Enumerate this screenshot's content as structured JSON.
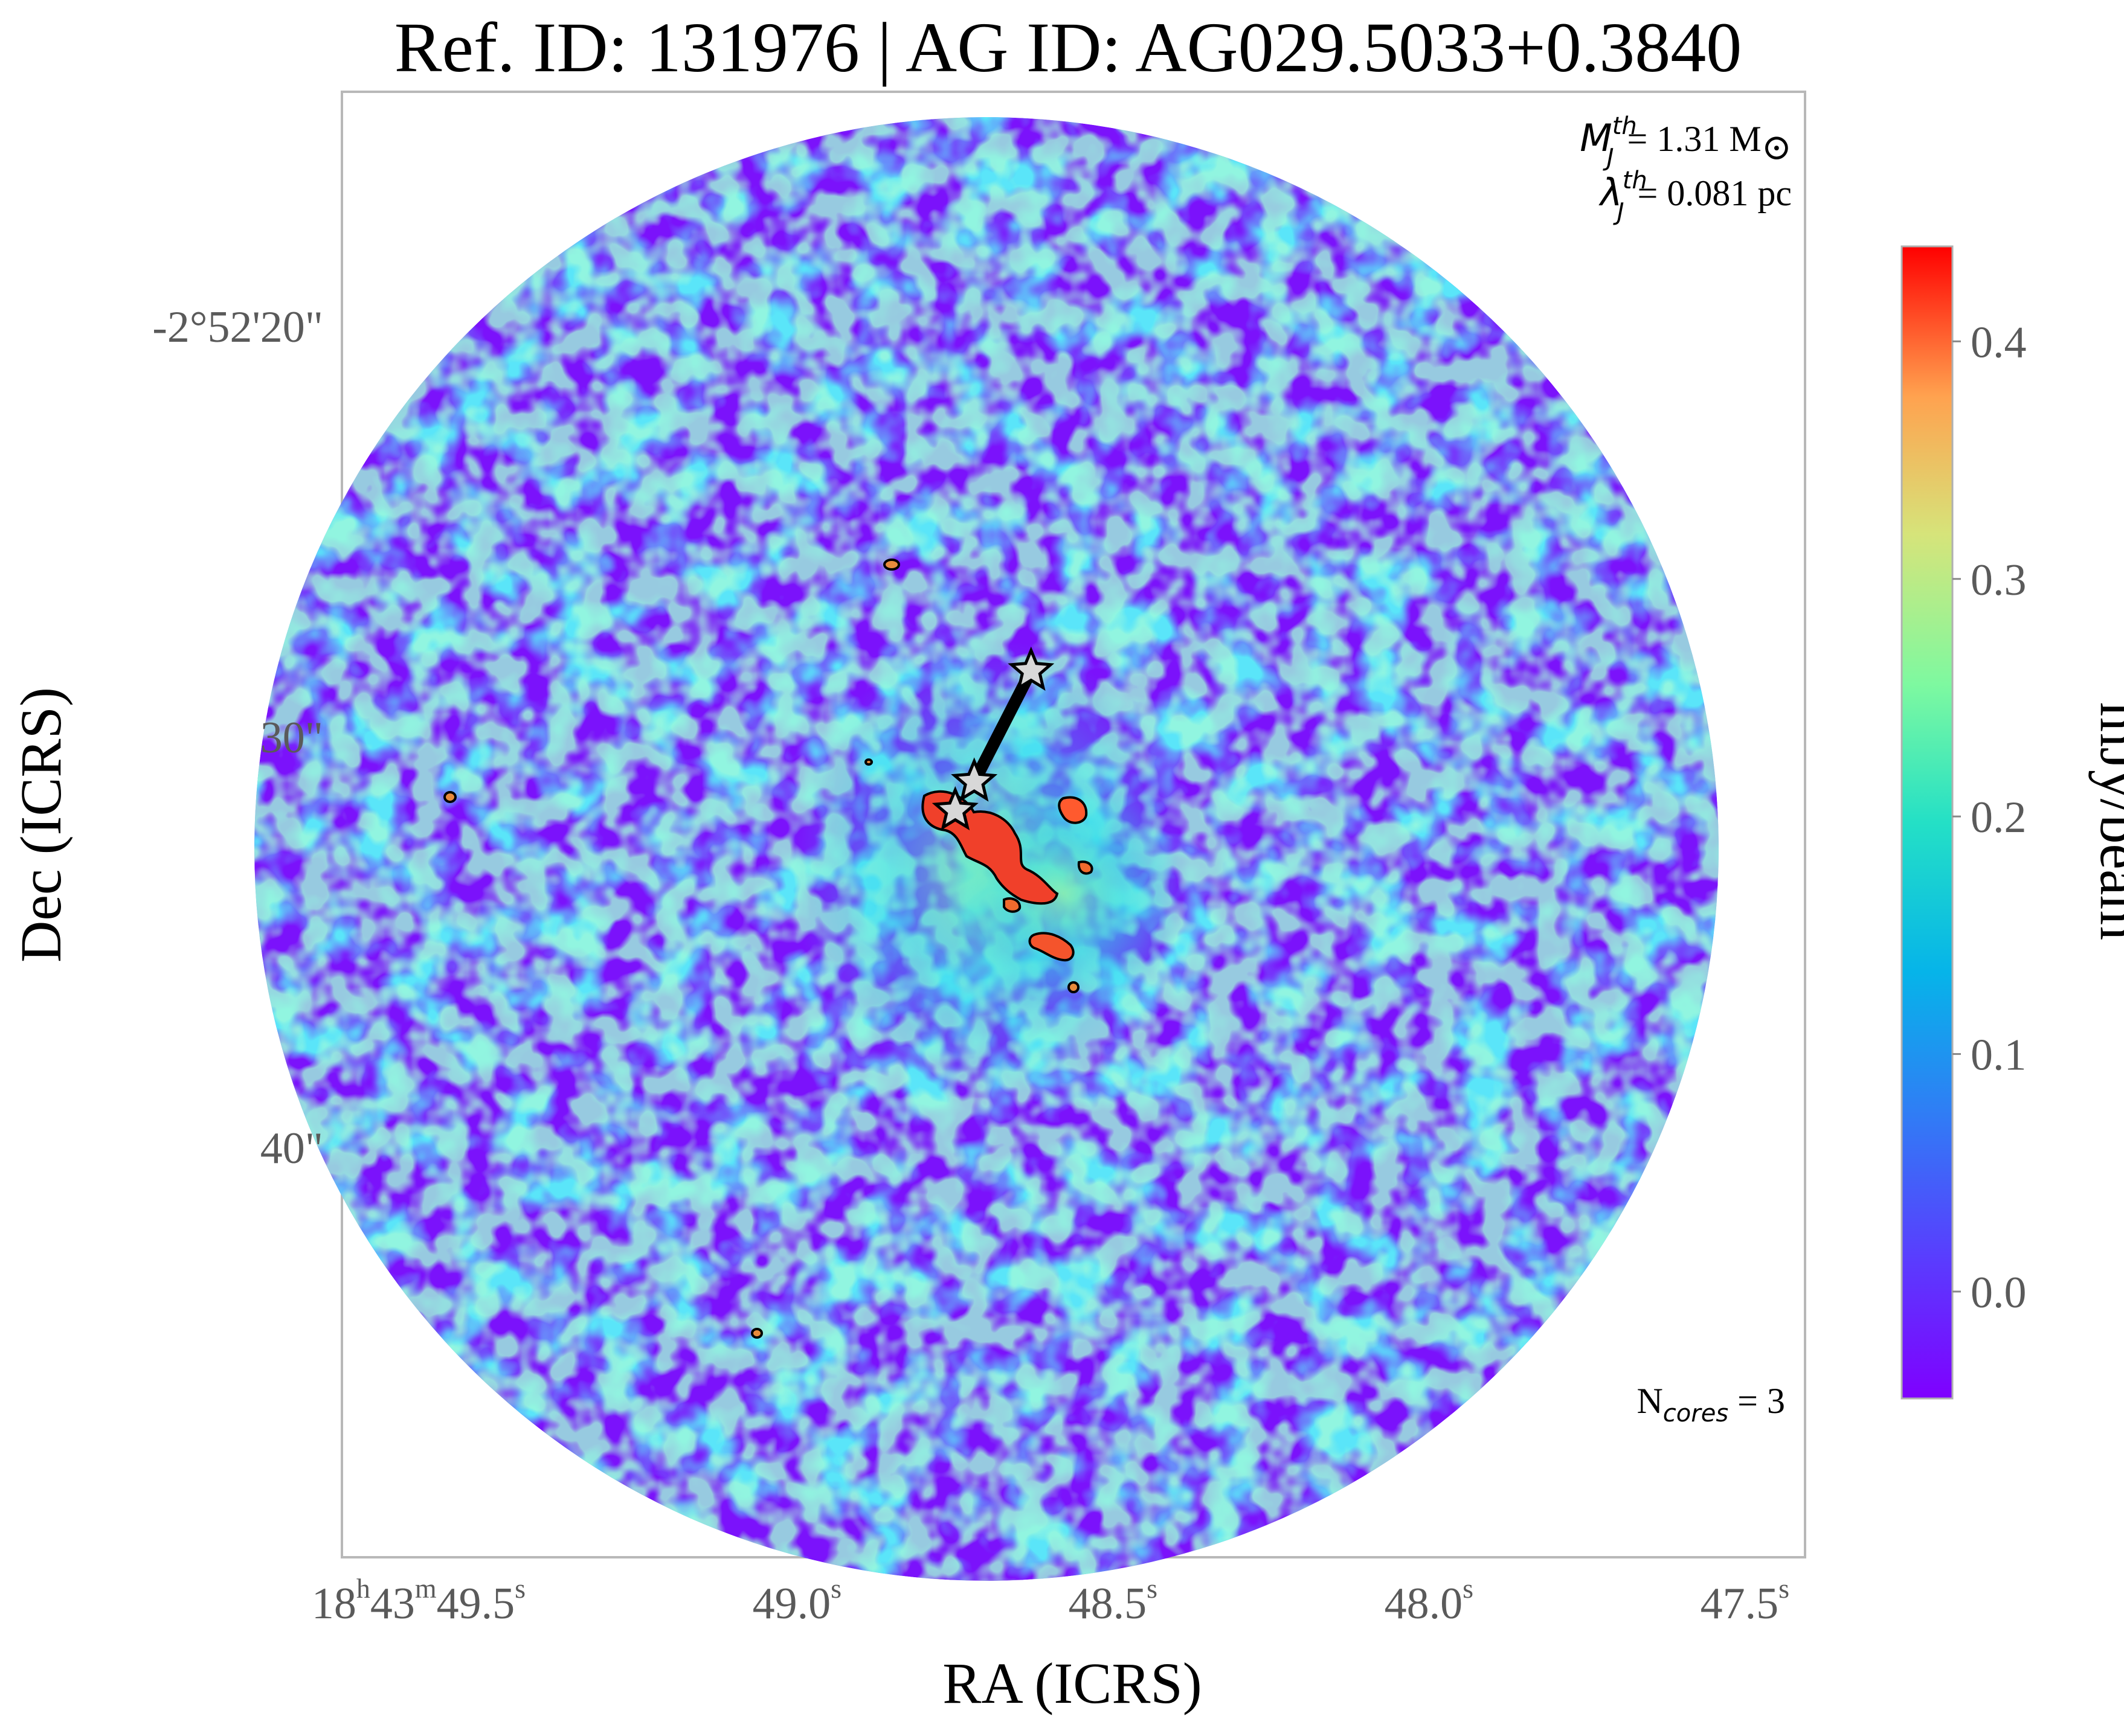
{
  "chart_data": {
    "type": "heatmap",
    "title": "Ref. ID: 131976 | AG ID: AG029.5033+0.3840",
    "xlabel": "RA (ICRS)",
    "ylabel": "Dec (ICRS)",
    "x_ticks": [
      {
        "label": "18",
        "sup1": "h",
        "label2": "43",
        "sup2": "m",
        "label3": "49.5",
        "sup3": "s"
      },
      {
        "label": "49.0",
        "sup3": "s"
      },
      {
        "label": "48.5",
        "sup3": "s"
      },
      {
        "label": "48.0",
        "sup3": "s"
      },
      {
        "label": "47.5",
        "sup3": "s"
      }
    ],
    "x_tick_values_s": [
      49.5,
      49.0,
      48.5,
      48.0,
      47.5
    ],
    "y_ticks": [
      "-2°52'20\"",
      "30\"",
      "40\""
    ],
    "y_tick_values_arcsec": [
      20,
      30,
      40
    ],
    "colorbar": {
      "label": "mJy/beam",
      "ticks": [
        "0.0",
        "0.1",
        "0.2",
        "0.3",
        "0.4"
      ],
      "tick_values": [
        0.0,
        0.1,
        0.2,
        0.3,
        0.4
      ],
      "range": [
        -0.045,
        0.44
      ],
      "colormap": "rainbow"
    },
    "annotations": {
      "mass_symbol": "M",
      "mass_sup": "th",
      "mass_sub": "J",
      "mass_value": "= 1.31 M",
      "mass_unit": "⊙",
      "length_symbol": "λ",
      "length_sup": "th",
      "length_sub": "J",
      "length_value": "= 0.081 pc",
      "ncores_prefix": "N",
      "ncores_sub": "cores",
      "ncores_value": " = 3"
    },
    "cores": [
      {
        "ra_s": 48.7,
        "dec_arcsec": 28.4
      },
      {
        "ra_s": 48.79,
        "dec_arcsec": 31.1
      },
      {
        "ra_s": 48.82,
        "dec_arcsec": 31.8
      }
    ],
    "emission_peak_mJy_beam": 0.43,
    "grid": false
  }
}
